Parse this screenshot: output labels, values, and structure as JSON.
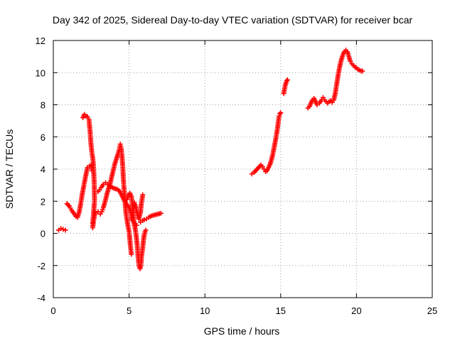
{
  "chart_data": {
    "type": "scatter",
    "title": "Day 342 of 2025, Sidereal Day-to-day VTEC variation (SDTVAR) for receiver bcar",
    "xlabel": "GPS time / hours",
    "ylabel": "SDTVAR / TECUs",
    "xlim": [
      0,
      25
    ],
    "ylim": [
      -4,
      12
    ],
    "xticks": [
      "0",
      "5",
      "10",
      "15",
      "20",
      "25"
    ],
    "yticks": [
      "-4",
      "-2",
      "0",
      "2",
      "4",
      "6",
      "8",
      "10",
      "12"
    ],
    "grid": true,
    "marker": "plus",
    "color": "#ff0000",
    "segments": [
      [
        [
          0.35,
          0.2
        ],
        [
          0.5,
          0.3
        ],
        [
          0.65,
          0.25
        ],
        [
          0.8,
          0.2
        ]
      ],
      [
        [
          0.9,
          1.85
        ],
        [
          1.05,
          1.7
        ],
        [
          1.2,
          1.45
        ],
        [
          1.35,
          1.25
        ],
        [
          1.5,
          1.05
        ],
        [
          1.6,
          1.0
        ],
        [
          1.7,
          1.3
        ],
        [
          1.8,
          1.8
        ],
        [
          1.9,
          2.4
        ],
        [
          2.0,
          2.9
        ],
        [
          2.1,
          3.4
        ],
        [
          2.25,
          4.1
        ],
        [
          2.4,
          4.2
        ],
        [
          2.5,
          4.25
        ],
        [
          2.55,
          3.9
        ]
      ],
      [
        [
          1.95,
          7.2
        ],
        [
          2.05,
          7.4
        ],
        [
          2.15,
          7.3
        ],
        [
          2.25,
          7.25
        ],
        [
          2.35,
          7.1
        ],
        [
          2.42,
          6.4
        ],
        [
          2.48,
          5.6
        ],
        [
          2.55,
          5.0
        ],
        [
          2.6,
          4.7
        ],
        [
          2.65,
          4.2
        ],
        [
          2.7,
          3.1
        ],
        [
          2.72,
          2.0
        ],
        [
          2.65,
          1.2
        ],
        [
          2.6,
          0.6
        ],
        [
          2.6,
          0.35
        ],
        [
          2.68,
          0.9
        ],
        [
          2.75,
          1.2
        ],
        [
          2.8,
          1.3
        ],
        [
          2.95,
          1.35
        ]
      ],
      [
        [
          2.95,
          2.6
        ],
        [
          3.05,
          2.7
        ],
        [
          3.15,
          2.85
        ],
        [
          3.3,
          3.05
        ],
        [
          3.45,
          3.15
        ],
        [
          3.6,
          3.05
        ],
        [
          3.8,
          2.9
        ],
        [
          4.0,
          2.8
        ],
        [
          4.2,
          2.75
        ],
        [
          4.4,
          2.6
        ],
        [
          4.55,
          2.3
        ],
        [
          4.7,
          2.0
        ],
        [
          4.85,
          1.8
        ],
        [
          5.0,
          1.6
        ],
        [
          5.1,
          1.4
        ],
        [
          5.15,
          1.1
        ],
        [
          5.2,
          0.8
        ],
        [
          5.3,
          0.7
        ],
        [
          5.5,
          0.5
        ]
      ],
      [
        [
          3.1,
          1.2
        ],
        [
          3.2,
          1.35
        ],
        [
          3.3,
          1.6
        ],
        [
          3.45,
          2.1
        ],
        [
          3.55,
          2.5
        ],
        [
          3.65,
          2.8
        ],
        [
          3.75,
          3.1
        ],
        [
          3.85,
          3.5
        ],
        [
          3.95,
          3.9
        ],
        [
          4.05,
          4.3
        ],
        [
          4.15,
          4.6
        ],
        [
          4.25,
          4.9
        ],
        [
          4.35,
          5.2
        ],
        [
          4.42,
          5.55
        ],
        [
          4.48,
          5.3
        ],
        [
          4.52,
          4.9
        ],
        [
          4.58,
          4.2
        ],
        [
          4.62,
          3.4
        ],
        [
          4.68,
          2.6
        ],
        [
          4.72,
          2.1
        ],
        [
          4.8,
          1.2
        ],
        [
          4.9,
          0.6
        ],
        [
          5.0,
          0.1
        ],
        [
          5.05,
          -0.4
        ],
        [
          5.1,
          -0.9
        ],
        [
          5.15,
          -1.3
        ]
      ],
      [
        [
          4.85,
          2.1
        ],
        [
          4.95,
          2.4
        ],
        [
          5.05,
          2.5
        ],
        [
          5.15,
          2.3
        ],
        [
          5.2,
          1.9
        ],
        [
          5.25,
          1.4
        ],
        [
          5.3,
          0.9
        ],
        [
          5.35,
          0.5
        ],
        [
          5.4,
          0.3
        ],
        [
          5.45,
          0.0
        ],
        [
          5.5,
          -0.4
        ],
        [
          5.55,
          -0.9
        ],
        [
          5.6,
          -1.5
        ],
        [
          5.65,
          -2.0
        ],
        [
          5.72,
          -2.2
        ],
        [
          5.78,
          -2.0
        ],
        [
          5.82,
          -1.4
        ],
        [
          5.9,
          -0.9
        ],
        [
          5.95,
          -0.4
        ],
        [
          6.0,
          -0.1
        ],
        [
          6.05,
          0.1
        ],
        [
          6.1,
          0.2
        ]
      ],
      [
        [
          5.2,
          0.9
        ],
        [
          5.25,
          1.3
        ],
        [
          5.3,
          1.7
        ],
        [
          5.35,
          1.9
        ],
        [
          5.45,
          1.6
        ],
        [
          5.55,
          1.2
        ],
        [
          5.65,
          0.9
        ],
        [
          5.75,
          1.3
        ],
        [
          5.8,
          1.8
        ],
        [
          5.85,
          2.1
        ],
        [
          5.9,
          2.4
        ]
      ],
      [
        [
          5.75,
          0.7
        ],
        [
          5.9,
          0.8
        ],
        [
          6.0,
          0.85
        ],
        [
          6.15,
          0.9
        ],
        [
          6.3,
          1.0
        ],
        [
          6.5,
          1.1
        ],
        [
          6.7,
          1.15
        ],
        [
          6.9,
          1.2
        ],
        [
          7.1,
          1.25
        ]
      ],
      [
        [
          13.1,
          3.7
        ],
        [
          13.25,
          3.8
        ],
        [
          13.4,
          3.95
        ],
        [
          13.55,
          4.1
        ],
        [
          13.7,
          4.25
        ],
        [
          13.8,
          4.15
        ],
        [
          13.9,
          4.0
        ],
        [
          14.0,
          3.85
        ],
        [
          14.1,
          3.9
        ],
        [
          14.2,
          4.1
        ],
        [
          14.3,
          4.3
        ],
        [
          14.4,
          4.6
        ],
        [
          14.5,
          5.0
        ],
        [
          14.6,
          5.5
        ],
        [
          14.7,
          6.0
        ],
        [
          14.75,
          6.3
        ],
        [
          14.8,
          6.6
        ],
        [
          14.85,
          7.0
        ],
        [
          14.9,
          7.3
        ],
        [
          14.95,
          7.45
        ],
        [
          15.0,
          7.5
        ]
      ],
      [
        [
          15.2,
          8.7
        ],
        [
          15.3,
          9.2
        ],
        [
          15.4,
          9.5
        ],
        [
          15.45,
          9.55
        ]
      ],
      [
        [
          16.8,
          7.8
        ],
        [
          16.9,
          7.9
        ],
        [
          17.0,
          8.1
        ],
        [
          17.1,
          8.3
        ],
        [
          17.2,
          8.4
        ],
        [
          17.3,
          8.2
        ],
        [
          17.4,
          8.0
        ],
        [
          17.55,
          8.1
        ],
        [
          17.7,
          8.3
        ],
        [
          17.8,
          8.45
        ],
        [
          17.9,
          8.3
        ],
        [
          18.0,
          8.2
        ],
        [
          18.1,
          8.1
        ],
        [
          18.2,
          8.2
        ],
        [
          18.3,
          8.25
        ],
        [
          18.4,
          8.15
        ],
        [
          18.5,
          8.3
        ],
        [
          18.6,
          8.7
        ],
        [
          18.7,
          9.3
        ],
        [
          18.8,
          9.9
        ],
        [
          18.9,
          10.4
        ],
        [
          19.0,
          10.8
        ],
        [
          19.1,
          11.1
        ],
        [
          19.2,
          11.3
        ],
        [
          19.3,
          11.4
        ],
        [
          19.4,
          11.3
        ],
        [
          19.5,
          11.0
        ],
        [
          19.6,
          10.7
        ],
        [
          19.7,
          10.55
        ],
        [
          19.8,
          10.45
        ],
        [
          19.9,
          10.35
        ],
        [
          20.0,
          10.3
        ],
        [
          20.1,
          10.2
        ],
        [
          20.2,
          10.15
        ],
        [
          20.3,
          10.1
        ],
        [
          20.4,
          10.1
        ]
      ]
    ]
  }
}
